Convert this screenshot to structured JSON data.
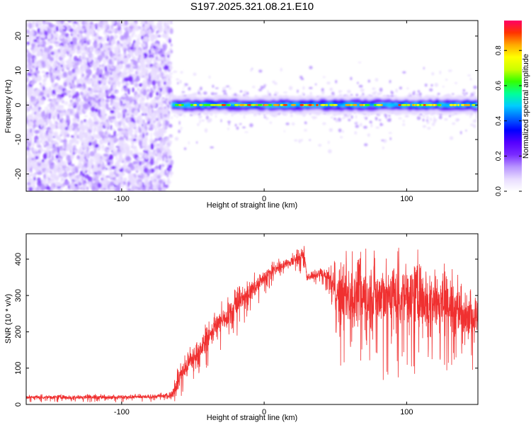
{
  "figure": {
    "title": "S197.2025.321.08.21.E10"
  },
  "chart_data": [
    {
      "type": "heatmap",
      "xlabel": "Height of straight line (km)",
      "ylabel": "Frequency (Hz)",
      "xlim": [
        -167,
        150
      ],
      "ylim": [
        -25,
        24.5
      ],
      "xticks": [
        -100,
        0,
        100
      ],
      "yticks": [
        -20,
        -10,
        0,
        10,
        20
      ],
      "grid": false,
      "colorbar": {
        "label": "Normalized spectral amplitude",
        "range": [
          0,
          0.97
        ],
        "ticks": [
          0.0,
          0.2,
          0.4,
          0.6,
          0.8
        ],
        "tick_labels": [
          "0.0",
          "0.2",
          "0.4",
          "0.6",
          "0.8"
        ],
        "colormap": [
          "#ffffff",
          "#e8dcff",
          "#b894ff",
          "#7a2bff",
          "#5500ff",
          "#0000ff",
          "#0066ff",
          "#00ccff",
          "#00ff99",
          "#33ff00",
          "#ccff00",
          "#ffff00",
          "#ffaa00",
          "#ff3300",
          "#ff0066"
        ]
      },
      "regions": [
        {
          "x_range": [
            -167,
            -65
          ],
          "description_level": "broadband noise",
          "amplitude_range": [
            0.05,
            0.2
          ],
          "freq_range": [
            -25,
            24.5
          ]
        },
        {
          "x_range": [
            -65,
            150
          ],
          "description_level": "narrow carrier line",
          "center_freq": 0,
          "amplitude_peak": 0.95,
          "halo_amplitude": 0.12
        }
      ]
    },
    {
      "type": "line",
      "xlabel": "Height of straight line (km)",
      "ylabel": "SNR (10 * v/v)",
      "xlim": [
        -167,
        150
      ],
      "ylim": [
        0,
        470
      ],
      "xticks": [
        -100,
        0,
        100
      ],
      "yticks": [
        0,
        100,
        200,
        300,
        400
      ],
      "grid": false,
      "color": "#f03030",
      "series": [
        {
          "x": [
            -167,
            -140,
            -120,
            -100,
            -80,
            -65,
            -60,
            -55,
            -50,
            -45,
            -40,
            -35,
            -30,
            -25,
            -20,
            -15,
            -10,
            -5,
            0,
            5,
            10,
            15,
            20,
            25,
            28,
            30,
            35,
            40,
            45,
            50,
            60,
            70,
            80,
            90,
            100,
            110,
            120,
            130,
            140,
            150
          ],
          "mean": [
            20,
            20,
            20,
            20,
            21,
            25,
            70,
            100,
            130,
            150,
            180,
            210,
            230,
            250,
            270,
            290,
            310,
            330,
            350,
            365,
            375,
            385,
            395,
            405,
            415,
            350,
            355,
            360,
            350,
            300,
            300,
            300,
            300,
            300,
            300,
            300,
            290,
            270,
            250,
            240
          ],
          "spread": [
            8,
            8,
            8,
            8,
            8,
            10,
            40,
            40,
            40,
            45,
            45,
            45,
            50,
            50,
            50,
            40,
            40,
            40,
            30,
            25,
            25,
            20,
            20,
            25,
            30,
            15,
            15,
            15,
            30,
            100,
            120,
            130,
            130,
            130,
            130,
            120,
            110,
            100,
            90,
            80
          ]
        }
      ]
    }
  ]
}
